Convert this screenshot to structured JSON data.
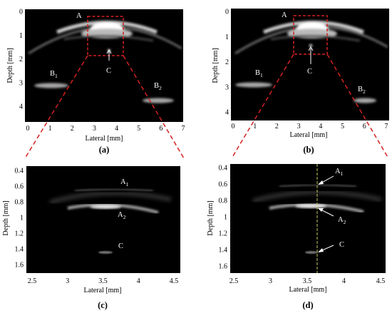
{
  "panels": {
    "a": {
      "label": "(a)",
      "xlabel": "Lateral [mm]",
      "ylabel": "Depth [mm]",
      "xticks": [
        "0",
        "1",
        "2",
        "3",
        "4",
        "5",
        "6",
        "7"
      ],
      "yticks": [
        "0",
        "1",
        "2",
        "3",
        "4"
      ],
      "annotations": {
        "A": "A",
        "B": "B",
        "B1_sub": "1",
        "B2_sub": "2",
        "C": "C"
      }
    },
    "b": {
      "label": "(b)",
      "xlabel": "Lateral [mm]",
      "ylabel": "Depth [mm]",
      "xticks": [
        "0",
        "1",
        "2",
        "3",
        "4",
        "5",
        "6",
        "7"
      ],
      "yticks": [
        "0",
        "1",
        "2",
        "3",
        "4"
      ],
      "annotations": {
        "A": "A",
        "B": "B",
        "B1_sub": "1",
        "B2_sub": "2",
        "C": "C"
      }
    },
    "c": {
      "label": "(c)",
      "xlabel": "Lateral [mm]",
      "ylabel": "Depth [mm]",
      "xticks": [
        "2.5",
        "3",
        "3.5",
        "4",
        "4.5"
      ],
      "yticks": [
        "0.4",
        "0.6",
        "0.8",
        "1",
        "1.2",
        "1.4",
        "1.6"
      ],
      "annotations": {
        "A": "A",
        "A1_sub": "1",
        "A2_sub": "2",
        "C": "C"
      }
    },
    "d": {
      "label": "(d)",
      "xlabel": "Lateral [mm]",
      "ylabel": "Depth [mm]",
      "xticks": [
        "2.5",
        "3",
        "3.5",
        "4",
        "4.5"
      ],
      "yticks": [
        "0.4",
        "0.6",
        "0.8",
        "1",
        "1.2",
        "1.4",
        "1.6"
      ],
      "annotations": {
        "A": "A",
        "A1_sub": "1",
        "A2_sub": "2",
        "C": "C"
      }
    }
  },
  "colors": {
    "zoom_box": "#d42020",
    "scan_line": "#c8c85a",
    "background": "#000000"
  }
}
